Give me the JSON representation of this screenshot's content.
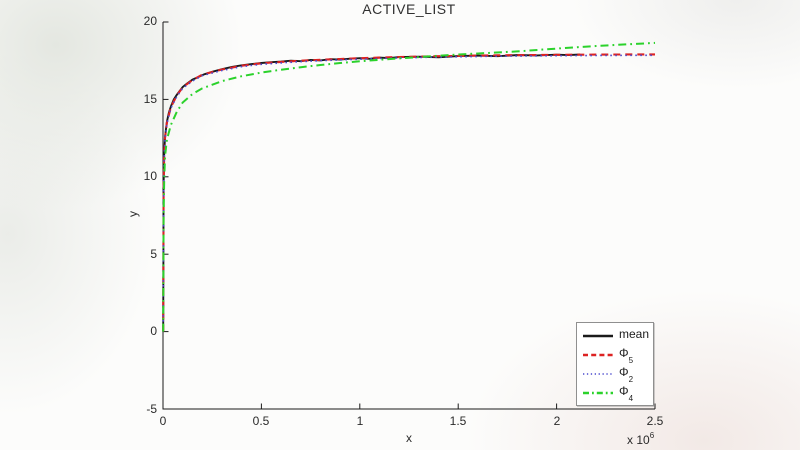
{
  "figure": {
    "title": "ACTIVE_LIST",
    "xlabel": "x",
    "ylabel": "y",
    "multiplier_prefix": "x 10",
    "multiplier_exponent": "6"
  },
  "legend": {
    "position": "bottom-right",
    "items": [
      {
        "label": "mean",
        "sub": "",
        "color": "#1a1a1a",
        "linestyle": "solid"
      },
      {
        "label": "Φ",
        "sub": "5",
        "color": "#dd2222",
        "linestyle": "dashed"
      },
      {
        "label": "Φ",
        "sub": "2",
        "color": "#4a4ace",
        "linestyle": "dotted"
      },
      {
        "label": "Φ",
        "sub": "4",
        "color": "#2bd22b",
        "linestyle": "dashdot"
      }
    ]
  },
  "chart_data": {
    "type": "line",
    "title": "ACTIVE_LIST",
    "xlabel": "x",
    "ylabel": "y",
    "x_units": "values in millions (axis shows x 10^6)",
    "xlim": [
      0,
      2.5
    ],
    "ylim": [
      -5,
      20
    ],
    "grid": false,
    "legend_position": "bottom-right",
    "x_ticks": [
      0,
      0.5,
      1,
      1.5,
      2,
      2.5
    ],
    "x_tick_labels": [
      "0",
      "0.5",
      "1",
      "1.5",
      "2",
      "2.5"
    ],
    "y_ticks": [
      -5,
      0,
      5,
      10,
      15,
      20
    ],
    "y_tick_labels": [
      "-5",
      "0",
      "5",
      "10",
      "15",
      "20"
    ],
    "series": [
      {
        "id": "mean",
        "name": "mean",
        "color": "#1a1a1a",
        "linestyle": "solid",
        "linewidth": 1.9,
        "x": [
          0.001,
          0.003,
          0.006,
          0.01,
          0.015,
          0.02,
          0.03,
          0.04,
          0.055,
          0.07,
          0.085,
          0.1,
          0.12,
          0.15,
          0.18,
          0.21,
          0.25,
          0.3,
          0.35,
          0.4,
          0.45,
          0.5,
          0.55,
          0.6,
          0.65,
          0.7,
          0.75,
          0.8,
          0.85,
          0.9,
          0.95,
          1.0,
          1.05,
          1.1,
          1.15,
          1.2,
          1.3,
          1.4,
          1.5,
          1.6,
          1.7,
          1.8,
          1.9,
          2.0,
          2.06,
          2.12
        ],
        "y": [
          0,
          9.5,
          11.5,
          12.55,
          13.1,
          13.55,
          14.15,
          14.55,
          15.0,
          15.3,
          15.55,
          15.8,
          16.0,
          16.28,
          16.45,
          16.62,
          16.78,
          16.95,
          17.1,
          17.2,
          17.28,
          17.35,
          17.4,
          17.44,
          17.5,
          17.47,
          17.55,
          17.52,
          17.6,
          17.57,
          17.63,
          17.66,
          17.62,
          17.7,
          17.67,
          17.73,
          17.76,
          17.72,
          17.8,
          17.83,
          17.79,
          17.86,
          17.84,
          17.89,
          17.86,
          17.9
        ]
      },
      {
        "id": "phi5",
        "name": "Φ_5",
        "color": "#dd2222",
        "linestyle": "dashed",
        "linewidth": 2.1,
        "x": [
          0.001,
          0.003,
          0.006,
          0.01,
          0.02,
          0.04,
          0.07,
          0.1,
          0.15,
          0.2,
          0.3,
          0.4,
          0.5,
          0.6,
          0.7,
          0.8,
          0.9,
          1.0,
          1.1,
          1.2,
          1.35,
          1.5,
          1.7,
          1.9,
          2.1,
          2.3,
          2.5
        ],
        "y": [
          0,
          9.3,
          11.4,
          12.5,
          13.5,
          14.5,
          15.25,
          15.78,
          16.25,
          16.6,
          16.93,
          17.18,
          17.33,
          17.42,
          17.5,
          17.56,
          17.61,
          17.66,
          17.7,
          17.74,
          17.78,
          17.81,
          17.85,
          17.87,
          17.89,
          17.9,
          17.91
        ]
      },
      {
        "id": "phi2",
        "name": "Φ_2",
        "color": "#4a4ace",
        "linestyle": "dotted",
        "linewidth": 1.6,
        "x": [
          0.001,
          0.003,
          0.006,
          0.01,
          0.02,
          0.04,
          0.07,
          0.1,
          0.15,
          0.2,
          0.3,
          0.4,
          0.5,
          0.6,
          0.7,
          0.8,
          0.9,
          1.0,
          1.1,
          1.2,
          1.35,
          1.5,
          1.7,
          1.9,
          2.1,
          2.3,
          2.5
        ],
        "y": [
          0,
          9.24,
          11.34,
          12.44,
          13.44,
          14.44,
          15.19,
          15.72,
          16.19,
          16.54,
          16.87,
          17.12,
          17.27,
          17.36,
          17.44,
          17.5,
          17.55,
          17.6,
          17.64,
          17.68,
          17.72,
          17.75,
          17.79,
          17.81,
          17.83,
          17.84,
          17.85
        ]
      },
      {
        "id": "phi4",
        "name": "Φ_4",
        "color": "#2bd22b",
        "linestyle": "dashdot",
        "linewidth": 2.0,
        "x": [
          0.001,
          0.003,
          0.006,
          0.01,
          0.02,
          0.04,
          0.07,
          0.1,
          0.15,
          0.2,
          0.3,
          0.4,
          0.5,
          0.6,
          0.7,
          0.8,
          0.9,
          1.0,
          1.1,
          1.2,
          1.35,
          1.5,
          1.65,
          1.8,
          2.0,
          2.2,
          2.35,
          2.5
        ],
        "y": [
          0,
          7.5,
          9.8,
          11.3,
          12.4,
          13.35,
          14.2,
          14.8,
          15.35,
          15.72,
          16.18,
          16.5,
          16.73,
          16.92,
          17.08,
          17.22,
          17.35,
          17.46,
          17.56,
          17.65,
          17.78,
          17.9,
          18.0,
          18.1,
          18.28,
          18.45,
          18.55,
          18.65
        ]
      }
    ]
  }
}
